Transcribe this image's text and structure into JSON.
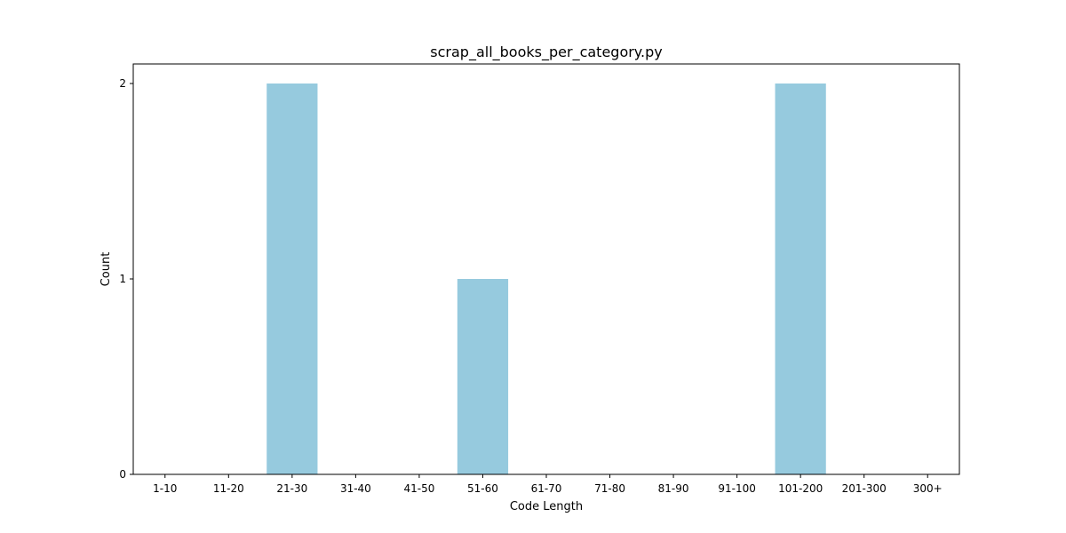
{
  "chart_data": {
    "type": "bar",
    "title": "scrap_all_books_per_category.py",
    "xlabel": "Code Length",
    "ylabel": "Count",
    "categories": [
      "1-10",
      "11-20",
      "21-30",
      "31-40",
      "41-50",
      "51-60",
      "61-70",
      "71-80",
      "81-90",
      "91-100",
      "101-200",
      "201-300",
      "300+"
    ],
    "values": [
      0,
      0,
      2,
      0,
      0,
      1,
      0,
      0,
      0,
      0,
      2,
      0,
      0
    ],
    "ylim": [
      0,
      2.1
    ],
    "yticks": [
      0,
      1,
      2
    ],
    "bar_color": "#96cade",
    "grid": false,
    "legend": "none"
  }
}
